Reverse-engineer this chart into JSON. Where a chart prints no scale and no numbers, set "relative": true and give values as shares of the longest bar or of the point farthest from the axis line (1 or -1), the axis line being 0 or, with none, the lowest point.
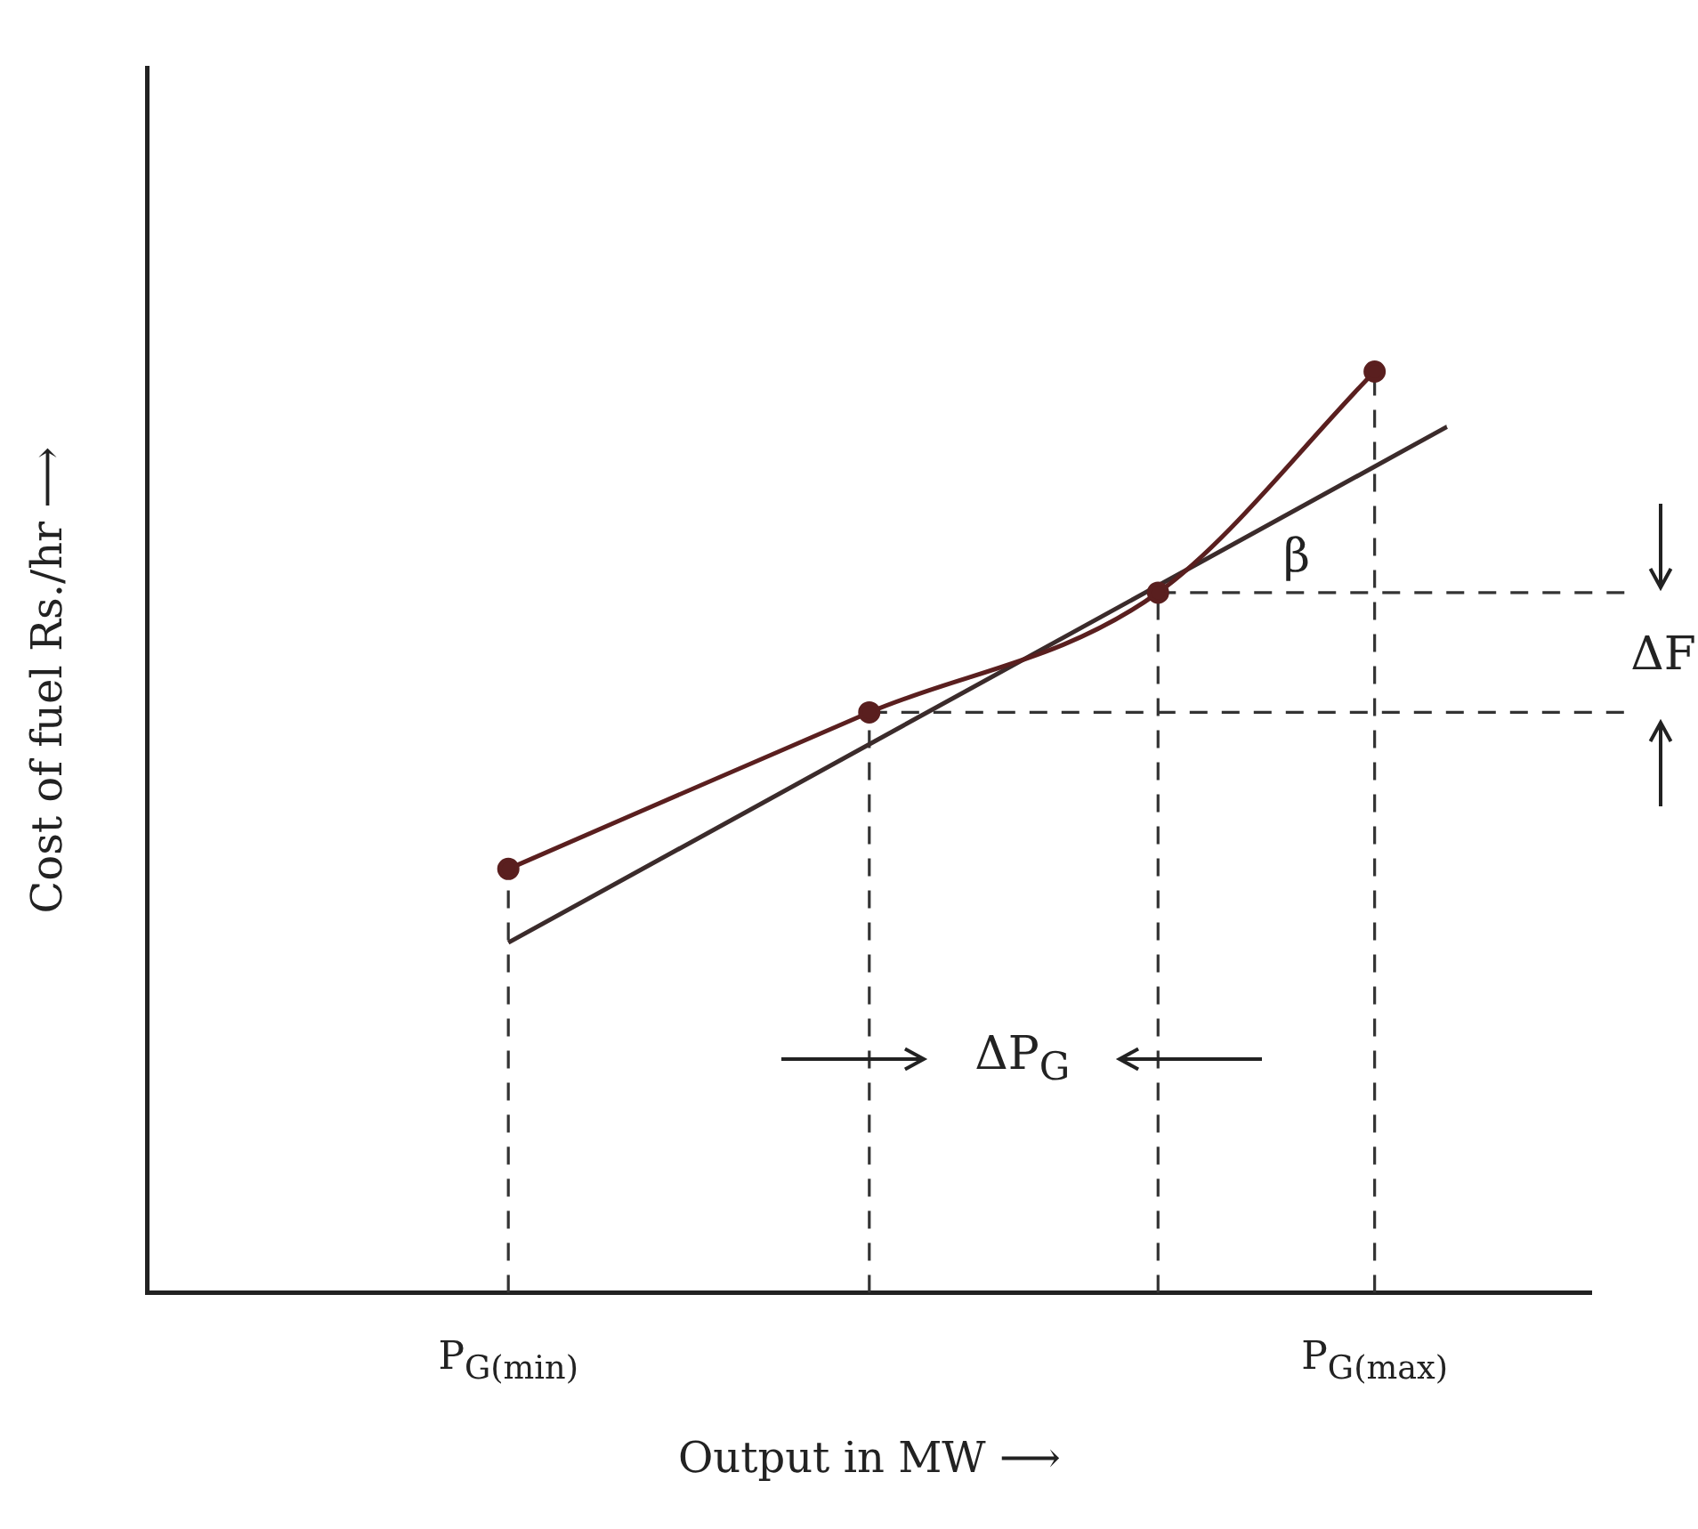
{
  "chart_data": {
    "type": "line",
    "xlabel": "Output in MW ⟶",
    "ylabel": "Cost of fuel Rs./hr ⟶",
    "relative": true,
    "categories": [
      null,
      null,
      null,
      null,
      null,
      "P$_{G(min)}$",
      null,
      null,
      null,
      null,
      null,
      null,
      null,
      null,
      null,
      null,
      null,
      "P$_{G(max)}$",
      null,
      null,
      null
    ],
    "series": [
      {
        "color": "#5a1f1f",
        "values": [
          null,
          null,
          null,
          null,
          null,
          0.46,
          null,
          null,
          null,
          null,
          0.63,
          null,
          null,
          null,
          0.76,
          null,
          null,
          1,
          null,
          null,
          null
        ],
        "marker": "circle"
      },
      {
        "color": "#3b2b2b",
        "values": [
          null,
          null,
          null,
          null,
          null,
          0.38,
          null,
          null,
          null,
          null,
          null,
          null,
          null,
          null,
          null,
          null,
          null,
          null,
          0.94,
          null,
          null
        ],
        "marker": "none"
      }
    ],
    "ref_lines": [
      {
        "axis": "x",
        "value": "P$_{G(min)}$",
        "line_style": "dashed"
      },
      {
        "axis": "x",
        "value": "P$_{G(max)}$",
        "line_style": "dashed"
      },
      {
        "axis": "y",
        "value": 0.63,
        "line_style": "dashed"
      },
      {
        "axis": "y",
        "value": 0.76,
        "line_style": "dashed"
      }
    ],
    "annotations": [
      "ΔF",
      "ΔP$_{G}$",
      "β"
    ],
    "legend": false,
    "tick_labels": "x",
    "line_style": "solid"
  }
}
